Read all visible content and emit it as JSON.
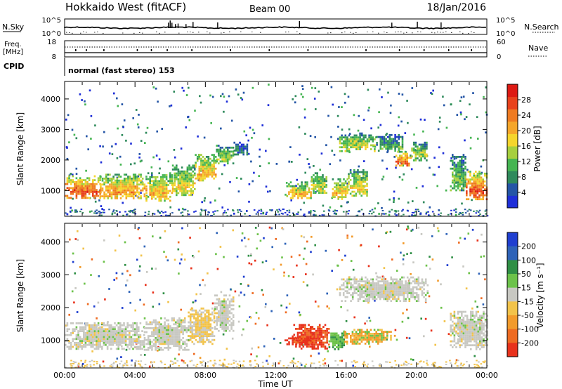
{
  "header": {
    "title": "Hokkaido West (fitACF)",
    "beam": "Beam 00",
    "date": "18/Jan/2016"
  },
  "top_panels": {
    "nsky": {
      "label": "N.Sky",
      "left_ticks": [
        "10^5",
        "10^0"
      ],
      "right_ticks": [
        "10^5",
        "10^0"
      ],
      "right_label": "N.Search",
      "spike_positions_hours": [
        5.9,
        6.0,
        6.1,
        6.3,
        6.45,
        6.9,
        7.3,
        8.7,
        13.35,
        18.6,
        20.05,
        21.4
      ]
    },
    "freq": {
      "label": "Freq.",
      "unit": "[MHz]",
      "left_ticks": [
        "18",
        "8"
      ],
      "right_ticks": [
        "60",
        "0"
      ],
      "right_label": "Nave"
    },
    "cpid": {
      "label": "CPID",
      "text": "normal (fast stereo) 153"
    }
  },
  "chart_data": [
    {
      "type": "heatmap",
      "name": "power",
      "ylabel": "Slant Range [km]",
      "xlim": [
        0,
        24
      ],
      "ylim": [
        180,
        4550
      ],
      "yticks": [
        1000,
        2000,
        3000,
        4000
      ],
      "xticks_hours": [
        0,
        4,
        8,
        12,
        16,
        20,
        24
      ],
      "colorbar": {
        "label": "Power [dB]",
        "ticks": [
          "4",
          "8",
          "12",
          "16",
          "20",
          "24",
          "28"
        ],
        "colors": [
          "#1f2fd8",
          "#2455a6",
          "#2f8a5c",
          "#45b552",
          "#a6cf3e",
          "#f5d52c",
          "#f5a62a",
          "#ef7b22",
          "#e8421c",
          "#dd1a13"
        ]
      },
      "echo_regions": [
        {
          "t": [
            0.0,
            2.0
          ],
          "r": [
            750,
            1500
          ],
          "level": 0.75
        },
        {
          "t": [
            2.0,
            4.6
          ],
          "r": [
            750,
            1550
          ],
          "level": 0.62
        },
        {
          "t": [
            4.6,
            6.1
          ],
          "r": [
            650,
            1600
          ],
          "level": 0.55
        },
        {
          "t": [
            6.1,
            7.4
          ],
          "r": [
            850,
            1850
          ],
          "level": 0.48
        },
        {
          "t": [
            7.4,
            8.6
          ],
          "r": [
            1300,
            2200
          ],
          "level": 0.58
        },
        {
          "t": [
            8.6,
            9.6
          ],
          "r": [
            1900,
            2500
          ],
          "level": 0.4
        },
        {
          "t": [
            9.6,
            10.4
          ],
          "r": [
            2200,
            2600
          ],
          "level": 0.2
        },
        {
          "t": [
            12.6,
            14.0
          ],
          "r": [
            750,
            1300
          ],
          "level": 0.55
        },
        {
          "t": [
            14.0,
            14.9
          ],
          "r": [
            900,
            1600
          ],
          "level": 0.45
        },
        {
          "t": [
            15.2,
            16.1
          ],
          "r": [
            750,
            1400
          ],
          "level": 0.55
        },
        {
          "t": [
            16.1,
            17.2
          ],
          "r": [
            850,
            1700
          ],
          "level": 0.48
        },
        {
          "t": [
            15.6,
            17.6
          ],
          "r": [
            2300,
            2900
          ],
          "level": 0.45
        },
        {
          "t": [
            17.6,
            19.2
          ],
          "r": [
            2300,
            2850
          ],
          "level": 0.3
        },
        {
          "t": [
            18.8,
            19.7
          ],
          "r": [
            1800,
            2300
          ],
          "level": 0.72
        },
        {
          "t": [
            19.7,
            20.6
          ],
          "r": [
            2000,
            2600
          ],
          "level": 0.4
        },
        {
          "t": [
            21.9,
            22.8
          ],
          "r": [
            1000,
            2200
          ],
          "level": 0.35
        },
        {
          "t": [
            22.8,
            24.0
          ],
          "r": [
            700,
            1650
          ],
          "level": 0.78
        }
      ]
    },
    {
      "type": "heatmap",
      "name": "velocity",
      "ylabel": "Slant Range [km]",
      "xlabel": "Time UT",
      "xlim": [
        0,
        24
      ],
      "ylim": [
        180,
        4550
      ],
      "yticks": [
        1000,
        2000,
        3000,
        4000
      ],
      "xtick_labels": [
        "00:00",
        "04:00",
        "08:00",
        "12:00",
        "16:00",
        "20:00",
        "00:00"
      ],
      "colorbar": {
        "label": "Velocity [m s⁻¹]",
        "ticks": [
          "200",
          "100",
          "50",
          "15",
          "-15",
          "-50",
          "-100",
          "-200"
        ],
        "colors": [
          "#1f3fd0",
          "#2e63b8",
          "#2f8f45",
          "#6cc24a",
          "#c8c8c2",
          "#f2c34a",
          "#f29b2c",
          "#ee6b22",
          "#e8321c"
        ]
      },
      "echo_regions": [
        {
          "t": [
            0.0,
            4.5
          ],
          "r": [
            750,
            1550
          ],
          "v": "grey"
        },
        {
          "t": [
            4.5,
            7.0
          ],
          "r": [
            700,
            1700
          ],
          "v": "grey"
        },
        {
          "t": [
            7.0,
            8.5
          ],
          "r": [
            900,
            2000
          ],
          "v": "orange-light"
        },
        {
          "t": [
            8.5,
            9.6
          ],
          "r": [
            1300,
            2400
          ],
          "v": "grey"
        },
        {
          "t": [
            12.5,
            14.1
          ],
          "r": [
            1150,
            900
          ],
          "v": "red"
        },
        {
          "t": [
            13.0,
            15.0
          ],
          "r": [
            750,
            1500
          ],
          "v": "red"
        },
        {
          "t": [
            15.0,
            16.0
          ],
          "r": [
            750,
            1300
          ],
          "v": "green"
        },
        {
          "t": [
            15.9,
            18.5
          ],
          "r": [
            900,
            1350
          ],
          "v": "orange"
        },
        {
          "t": [
            15.6,
            20.6
          ],
          "r": [
            2200,
            2950
          ],
          "v": "grey"
        },
        {
          "t": [
            21.9,
            24.0
          ],
          "r": [
            750,
            1900
          ],
          "v": "grey"
        }
      ]
    }
  ]
}
